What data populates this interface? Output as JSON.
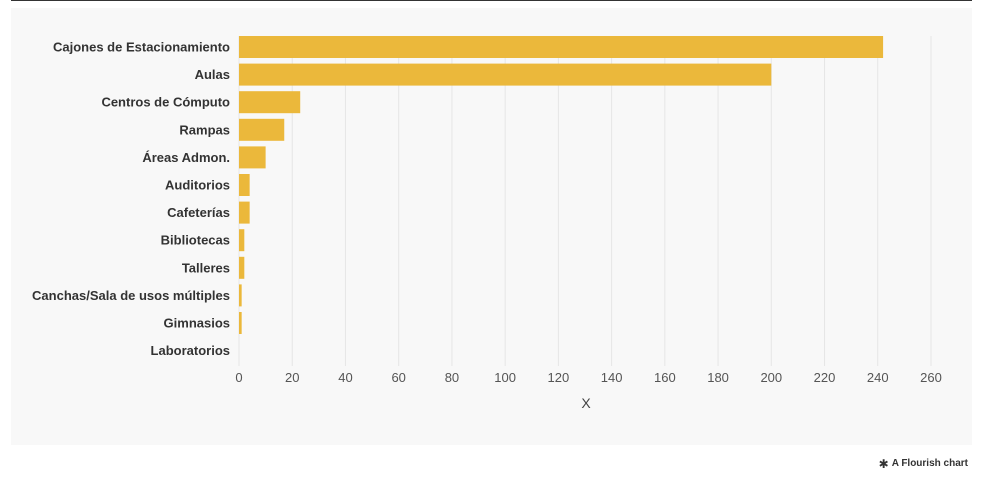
{
  "chart_data": {
    "type": "bar",
    "orientation": "horizontal",
    "categories": [
      "Cajones de Estacionamiento",
      "Aulas",
      "Centros de Cómputo",
      "Rampas",
      "Áreas Admon.",
      "Auditorios",
      "Cafeterías",
      "Bibliotecas",
      "Talleres",
      "Canchas/Sala de usos múltiples",
      "Gimnasios",
      "Laboratorios"
    ],
    "values": [
      242,
      200,
      23,
      17,
      10,
      4,
      4,
      2,
      2,
      1,
      1,
      0
    ],
    "xlabel": "X",
    "ylabel": "",
    "xlim": [
      0,
      260
    ],
    "xticks": [
      0,
      20,
      40,
      60,
      80,
      100,
      120,
      140,
      160,
      180,
      200,
      220,
      240,
      260
    ],
    "grid": true,
    "bar_color": "#ebb83b"
  },
  "footer": {
    "credit_text": "A Flourish chart",
    "credit_icon": "asterisk-icon"
  },
  "colors": {
    "background": "#f8f8f8",
    "bar": "#ebb83b",
    "grid": "#e6e6e6"
  }
}
